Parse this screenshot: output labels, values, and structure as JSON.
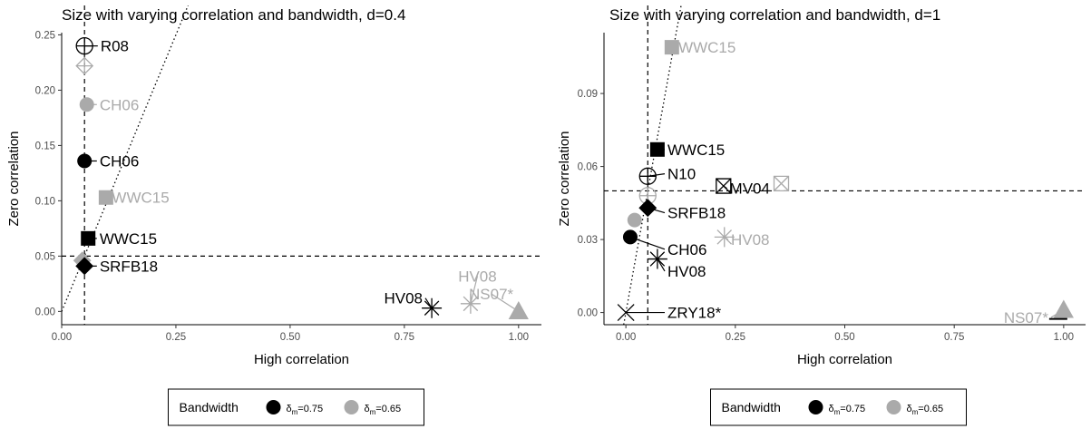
{
  "legend": {
    "title": "Bandwidth",
    "entries": [
      {
        "sym": "δ",
        "sub": "m",
        "value": "=0.75",
        "color": "#000000"
      },
      {
        "sym": "δ",
        "sub": "m",
        "value": "=0.65",
        "color": "#aaaaaa"
      }
    ]
  },
  "chart_data": [
    {
      "type": "scatter",
      "title": "Size with varying correlation and bandwidth, d=0.4",
      "xlabel": "High correlation",
      "ylabel": "Zero correlation",
      "xlim": [
        0,
        1.05
      ],
      "ylim": [
        -0.012,
        0.252
      ],
      "xticks": [
        0,
        0.25,
        0.5,
        0.75,
        1
      ],
      "xtick_labels": [
        "0.00",
        "0.25",
        "0.50",
        "0.75",
        "1.00"
      ],
      "yticks": [
        0,
        0.05,
        0.1,
        0.15,
        0.2,
        0.25
      ],
      "ytick_labels": [
        "0.00",
        "0.05",
        "0.10",
        "0.15",
        "0.20",
        "0.25"
      ],
      "hline": 0.05,
      "vline": 0.05,
      "diagonal": true,
      "grid": false,
      "legend_position": "bottom",
      "points": [
        {
          "label": "R08",
          "x": 0.05,
          "y": 0.24,
          "shape": "circle-plus",
          "color": "#000000",
          "lx": 0.085,
          "ly": 0.24,
          "anchor": "start"
        },
        {
          "label": "",
          "x": 0.05,
          "y": 0.222,
          "shape": "diamond-plus",
          "color": "#aaaaaa"
        },
        {
          "label": "CH06",
          "x": 0.055,
          "y": 0.187,
          "shape": "circle",
          "color": "#aaaaaa",
          "lx": 0.083,
          "ly": 0.187,
          "anchor": "start"
        },
        {
          "label": "CH06",
          "x": 0.05,
          "y": 0.136,
          "shape": "circle",
          "color": "#000000",
          "lx": 0.083,
          "ly": 0.136,
          "anchor": "start"
        },
        {
          "label": "WWC15",
          "x": 0.097,
          "y": 0.103,
          "shape": "square",
          "color": "#aaaaaa",
          "lx": 0.11,
          "ly": 0.103,
          "anchor": "start"
        },
        {
          "label": "WWC15",
          "x": 0.058,
          "y": 0.066,
          "shape": "square",
          "color": "#000000",
          "lx": 0.083,
          "ly": 0.066,
          "anchor": "start"
        },
        {
          "label": "",
          "x": 0.045,
          "y": 0.046,
          "shape": "diamond",
          "color": "#aaaaaa"
        },
        {
          "label": "SRFB18",
          "x": 0.05,
          "y": 0.041,
          "shape": "diamond",
          "color": "#000000",
          "lx": 0.083,
          "ly": 0.041,
          "anchor": "start"
        },
        {
          "label": "HV08",
          "x": 0.81,
          "y": 0.003,
          "shape": "asterisk",
          "color": "#000000",
          "lx": 0.79,
          "ly": 0.012,
          "anchor": "end"
        },
        {
          "label": "HV08",
          "x": 0.895,
          "y": 0.007,
          "shape": "asterisk",
          "color": "#aaaaaa",
          "lx": 0.91,
          "ly": 0.032,
          "anchor": "middle"
        },
        {
          "label": "NS07*",
          "x": 1.0,
          "y": 0.0,
          "shape": "triangle",
          "color": "#aaaaaa",
          "lx": 0.94,
          "ly": 0.016,
          "anchor": "middle"
        }
      ]
    },
    {
      "type": "scatter",
      "title": "Size with varying correlation and bandwidth, d=1",
      "xlabel": "High correlation",
      "ylabel": "Zero correlation",
      "xlim": [
        -0.05,
        1.05
      ],
      "ylim": [
        -0.005,
        0.115
      ],
      "xticks": [
        0,
        0.25,
        0.5,
        0.75,
        1
      ],
      "xtick_labels": [
        "0.00",
        "0.25",
        "0.50",
        "0.75",
        "1.00"
      ],
      "yticks": [
        0,
        0.03,
        0.06,
        0.09
      ],
      "ytick_labels": [
        "0.00",
        "0.03",
        "0.06",
        "0.09"
      ],
      "hline": 0.05,
      "vline": 0.05,
      "diagonal": true,
      "grid": false,
      "legend_position": "bottom",
      "points": [
        {
          "label": "WWC15",
          "x": 0.105,
          "y": 0.109,
          "shape": "square",
          "color": "#aaaaaa",
          "lx": 0.12,
          "ly": 0.109,
          "anchor": "start"
        },
        {
          "label": "WWC15",
          "x": 0.072,
          "y": 0.067,
          "shape": "square",
          "color": "#000000",
          "lx": 0.095,
          "ly": 0.067,
          "anchor": "start"
        },
        {
          "label": "N10",
          "x": 0.05,
          "y": 0.056,
          "shape": "circle-plus",
          "color": "#000000",
          "lx": 0.095,
          "ly": 0.057,
          "anchor": "start"
        },
        {
          "label": "MV04",
          "x": 0.223,
          "y": 0.052,
          "shape": "square-x",
          "color": "#000000",
          "lx": 0.237,
          "ly": 0.051,
          "anchor": "start"
        },
        {
          "label": "",
          "x": 0.355,
          "y": 0.053,
          "shape": "square-x",
          "color": "#aaaaaa"
        },
        {
          "label": "",
          "x": 0.05,
          "y": 0.048,
          "shape": "circle-plus",
          "color": "#aaaaaa"
        },
        {
          "label": "SRFB18",
          "x": 0.05,
          "y": 0.043,
          "shape": "diamond",
          "color": "#000000",
          "lx": 0.095,
          "ly": 0.041,
          "anchor": "start"
        },
        {
          "label": "",
          "x": 0.02,
          "y": 0.038,
          "shape": "circle",
          "color": "#aaaaaa"
        },
        {
          "label": "HV08",
          "x": 0.225,
          "y": 0.031,
          "shape": "asterisk",
          "color": "#aaaaaa",
          "lx": 0.24,
          "ly": 0.03,
          "anchor": "start"
        },
        {
          "label": "CH06",
          "x": 0.01,
          "y": 0.031,
          "shape": "circle",
          "color": "#000000",
          "lx": 0.095,
          "ly": 0.026,
          "anchor": "start"
        },
        {
          "label": "HV08",
          "x": 0.072,
          "y": 0.022,
          "shape": "asterisk",
          "color": "#000000",
          "lx": 0.095,
          "ly": 0.017,
          "anchor": "start"
        },
        {
          "label": "ZRY18*",
          "x": 0.0,
          "y": 0.0,
          "shape": "x",
          "color": "#000000",
          "lx": 0.095,
          "ly": 0.0,
          "anchor": "start"
        },
        {
          "label": "NS07*",
          "x": 1.0,
          "y": 0.001,
          "shape": "triangle",
          "color": "#aaaaaa",
          "lx": 0.965,
          "ly": -0.002,
          "anchor": "end"
        },
        {
          "label": "",
          "x": 1.0,
          "y": 0.0,
          "shape": "hbar",
          "color": "#000000"
        }
      ]
    }
  ]
}
